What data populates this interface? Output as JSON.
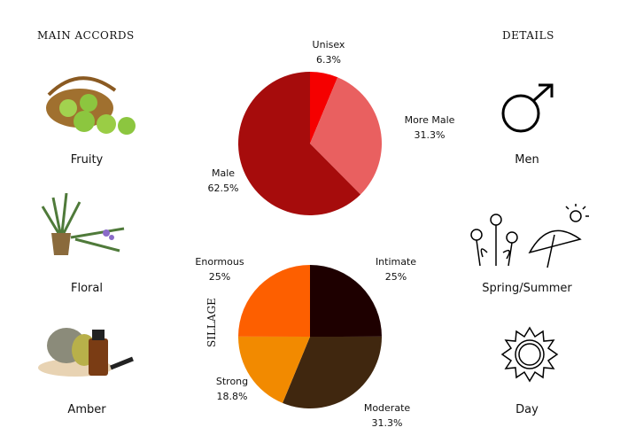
{
  "left": {
    "title": "MAIN ACCORDS",
    "items": [
      {
        "label": "Fruity",
        "icon": "apple-basket-image"
      },
      {
        "label": "Floral",
        "icon": "rosemary-plant-image"
      },
      {
        "label": "Amber",
        "icon": "oil-bottle-stones-image"
      }
    ]
  },
  "right": {
    "title": "DETAILS",
    "items": [
      {
        "label": "Men",
        "icon": "male-symbol-icon"
      },
      {
        "label": "Spring/Summer",
        "icon": "flowers-umbrella-icon"
      },
      {
        "label": "Day",
        "icon": "sun-icon"
      }
    ]
  },
  "chart_data": [
    {
      "type": "pie",
      "title": "",
      "categories": [
        "Unisex",
        "More Male",
        "Male"
      ],
      "values": [
        6.3,
        31.3,
        62.5
      ],
      "labels": [
        "6.3%",
        "31.3%",
        "62.5%"
      ],
      "colors": [
        "#f50000",
        "#e96060",
        "#a60c0c"
      ]
    },
    {
      "type": "pie",
      "title": "SILLAGE",
      "categories": [
        "Intimate",
        "Moderate",
        "Strong",
        "Enormous"
      ],
      "values": [
        25,
        31.3,
        18.8,
        25
      ],
      "labels": [
        "25%",
        "31.3%",
        "18.8%",
        "25%"
      ],
      "colors": [
        "#1e0000",
        "#40270f",
        "#f28a00",
        "#fd5f00"
      ]
    }
  ]
}
